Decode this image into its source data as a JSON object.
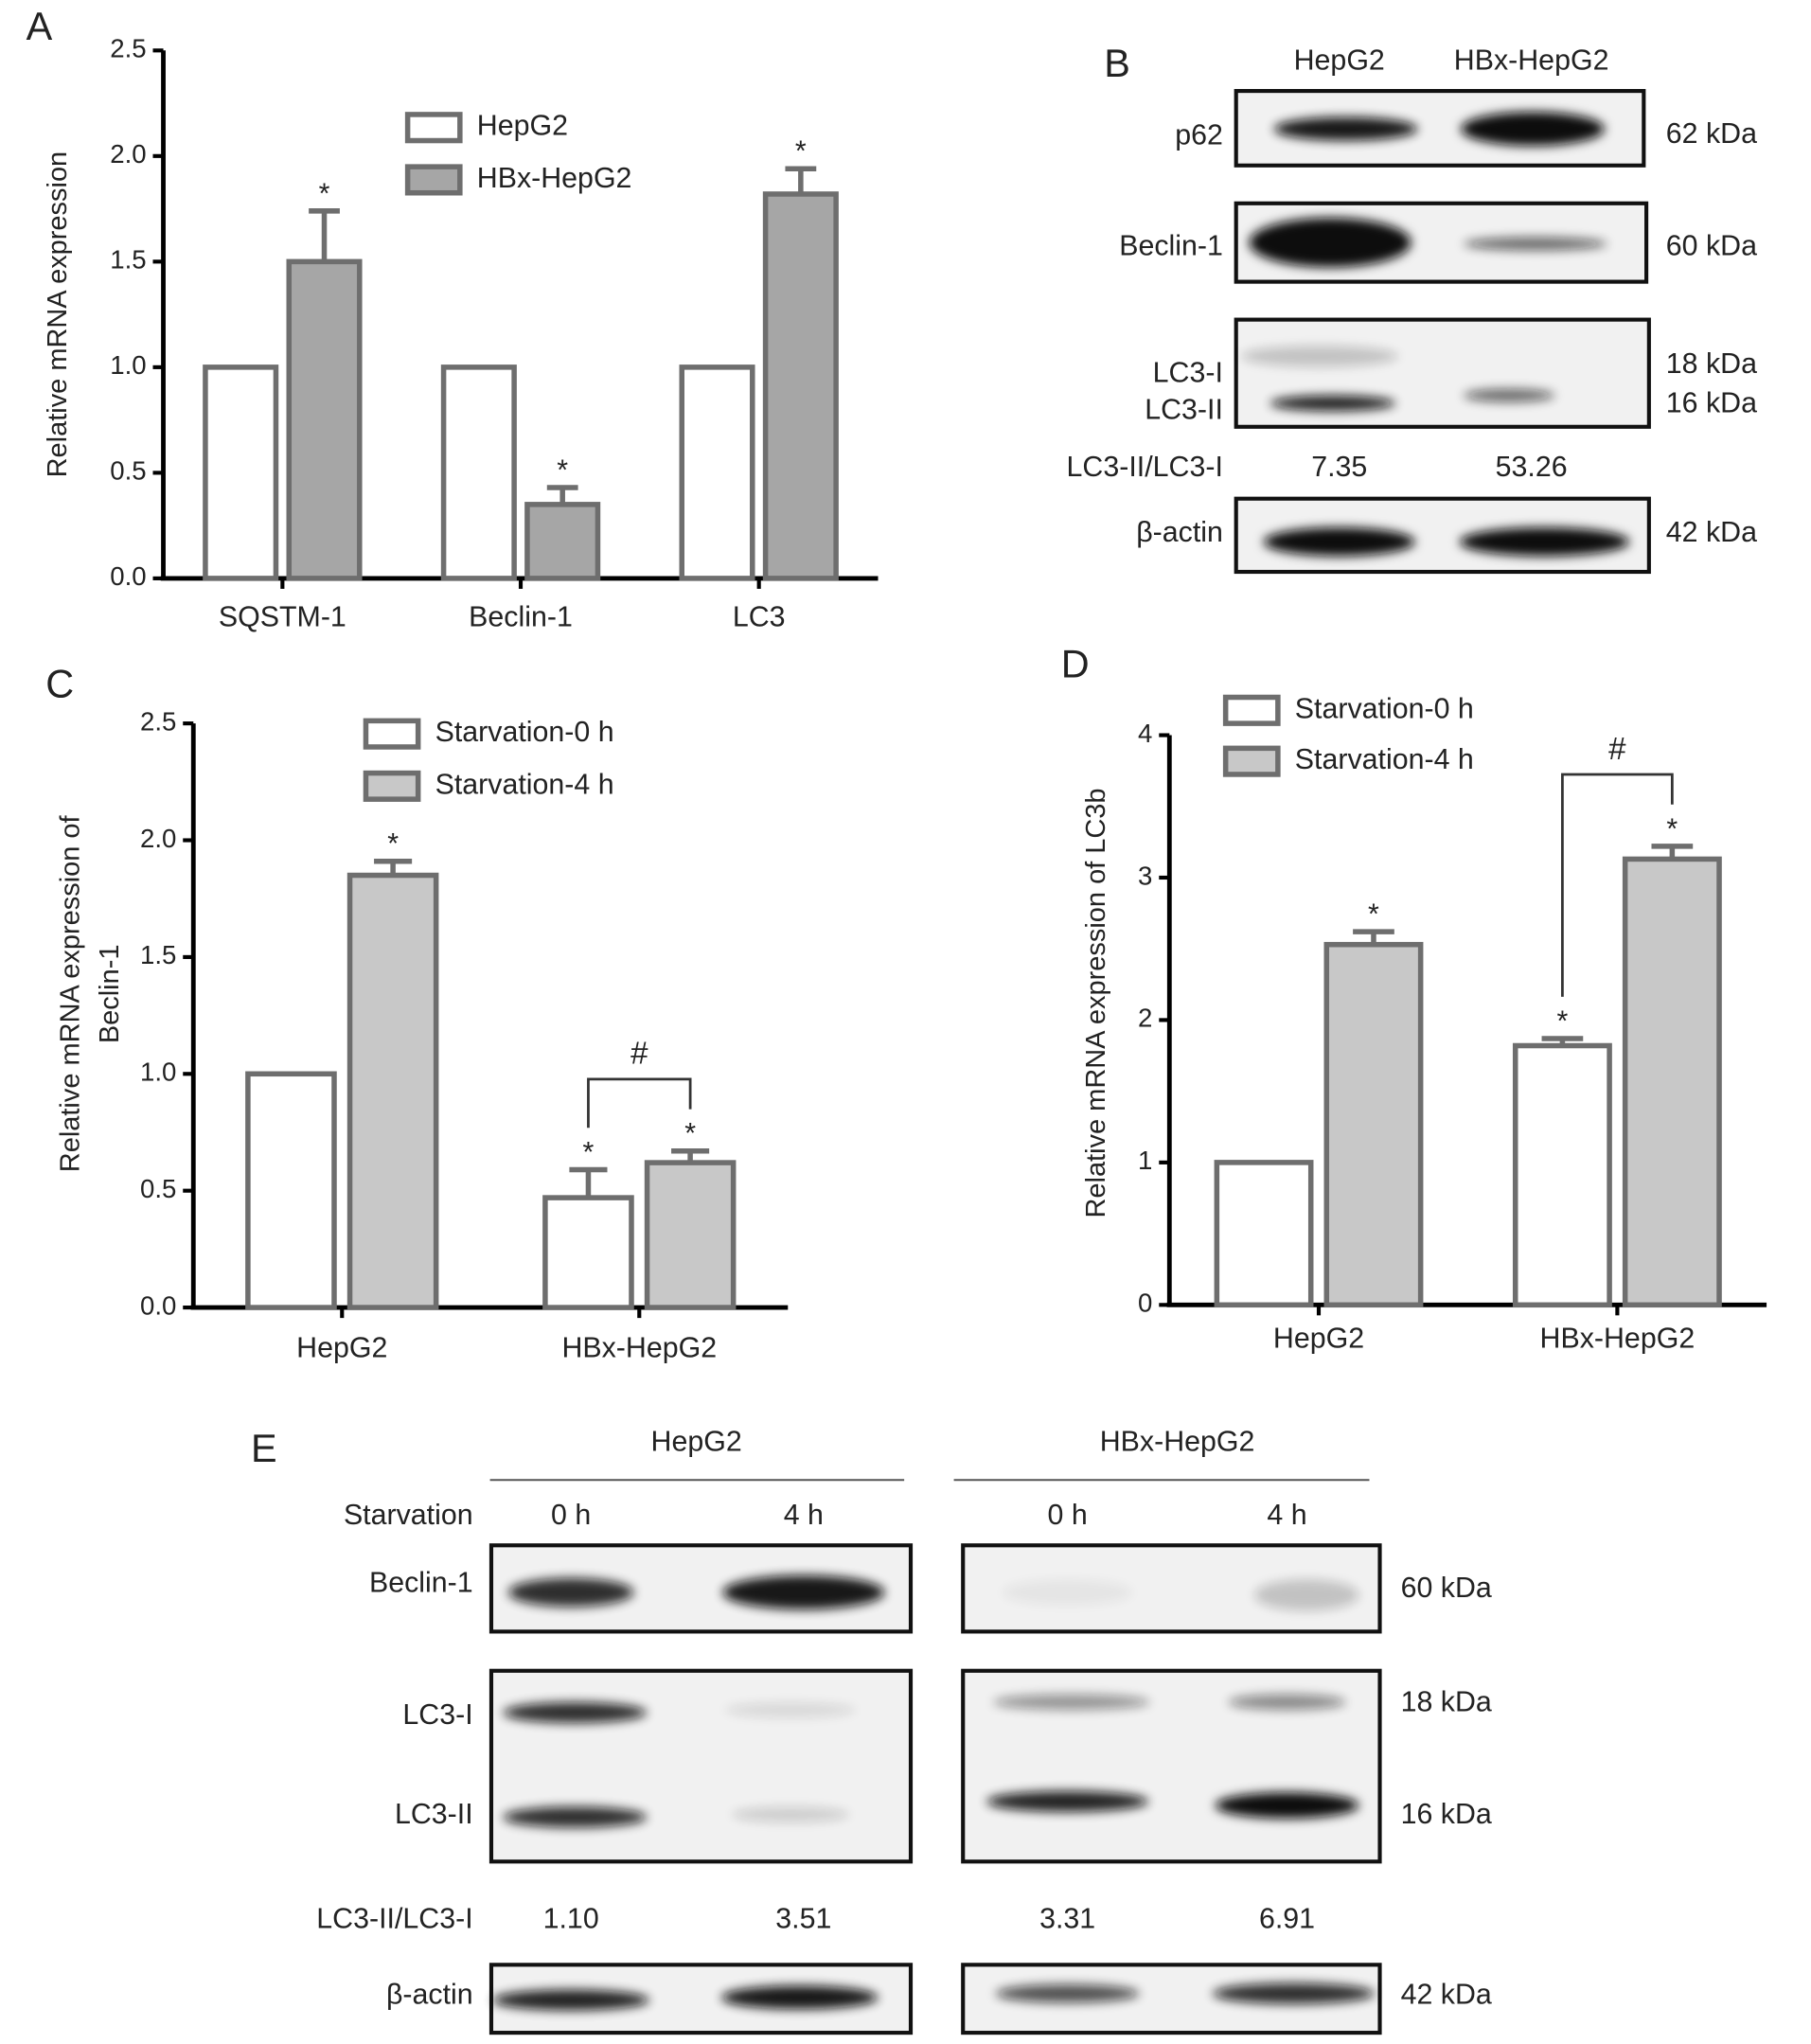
{
  "chart_data": [
    {
      "type": "bar",
      "panel": "A",
      "ylabel": "Relative mRNA expression",
      "categories": [
        "SQSTM-1",
        "Beclin-1",
        "LC3"
      ],
      "series": [
        {
          "name": "HepG2",
          "color": "#ffffff",
          "values": [
            1,
            1,
            1
          ],
          "errors": [
            null,
            null,
            null
          ],
          "marks": [
            null,
            null,
            null
          ]
        },
        {
          "name": "HBx-HepG2",
          "color": "#a6a6a6",
          "values": [
            1.5,
            0.35,
            1.82
          ],
          "errors": [
            0.24,
            0.08,
            0.12
          ],
          "marks": [
            "*",
            "*",
            "*"
          ]
        }
      ],
      "edgecolor": "#6e6e6e",
      "ylim": [
        0,
        2.5
      ],
      "yticks": [
        {
          "value": 0,
          "label": "0.0"
        },
        0.5,
        {
          "value": 1,
          "label": "1.0"
        },
        1.5,
        {
          "value": 2,
          "label": "2.0"
        },
        2.5
      ]
    },
    {
      "type": "bar",
      "panel": "C",
      "ylabel": [
        "Relative mRNA expression of",
        "Beclin-1"
      ],
      "categories": [
        "HepG2",
        "HBx-HepG2"
      ],
      "series": [
        {
          "name": "Starvation-0 h",
          "color": "#ffffff",
          "values": [
            1,
            0.47
          ],
          "errors": [
            null,
            0.12
          ],
          "marks": [
            null,
            "*"
          ]
        },
        {
          "name": "Starvation-4 h",
          "color": "#c8c8c8",
          "values": [
            1.85,
            0.62
          ],
          "errors": [
            0.06,
            0.05
          ],
          "marks": [
            "*",
            "*"
          ]
        }
      ],
      "edgecolor": "#6e6e6e",
      "ylim": [
        0,
        2.5
      ],
      "yticks": [
        {
          "value": 0,
          "label": "0.0"
        },
        0.5,
        {
          "value": 1,
          "label": "1.0"
        },
        1.5,
        {
          "value": 2,
          "label": "2.0"
        },
        2.5
      ],
      "bracket": {
        "label": "#",
        "category": "HBx-HepG2"
      }
    },
    {
      "type": "bar",
      "panel": "D",
      "ylabel": "Relative mRNA expression of LC3b",
      "categories": [
        "HepG2",
        "HBx-HepG2"
      ],
      "series": [
        {
          "name": "Starvation-0 h",
          "color": "#ffffff",
          "values": [
            1,
            1.82
          ],
          "errors": [
            null,
            0.05
          ],
          "marks": [
            null,
            "*"
          ]
        },
        {
          "name": "Starvation-4 h",
          "color": "#c8c8c8",
          "values": [
            2.53,
            3.13
          ],
          "errors": [
            0.09,
            0.09
          ],
          "marks": [
            "*",
            "*"
          ]
        }
      ],
      "edgecolor": "#6e6e6e",
      "ylim": [
        0,
        4
      ],
      "yticks": [
        0,
        1,
        2,
        3,
        4
      ],
      "bracket": {
        "label": "#",
        "category": "HBx-HepG2"
      }
    }
  ],
  "panel_B": {
    "label": "B",
    "columns": [
      "HepG2",
      "HBx-HepG2"
    ],
    "rows": [
      {
        "names": [
          "p62"
        ],
        "sizes": [
          "62 kDa"
        ]
      },
      {
        "names": [
          "Beclin-1"
        ],
        "sizes": [
          "60 kDa"
        ]
      },
      {
        "names": [
          "LC3-I",
          "LC3-II"
        ],
        "sizes": [
          "18 kDa",
          "16 kDa"
        ]
      },
      {
        "names": [
          "β-actin"
        ],
        "sizes": [
          "42 kDa"
        ]
      }
    ],
    "ratio_label": "LC3-II/LC3-I",
    "ratios": [
      "7.35",
      "53.26"
    ]
  },
  "panel_E": {
    "label": "E",
    "groups": [
      "HepG2",
      "HBx-HepG2"
    ],
    "condition_label": "Starvation",
    "conditions": [
      "0 h",
      "4 h",
      "0 h",
      "4 h"
    ],
    "rows": [
      {
        "names": [
          "Beclin-1"
        ],
        "sizes": [
          "60 kDa"
        ]
      },
      {
        "names": [
          "LC3-I",
          "LC3-II"
        ],
        "sizes": [
          "18 kDa",
          "16 kDa"
        ]
      },
      {
        "names": [
          "β-actin"
        ],
        "sizes": [
          "42 kDa"
        ]
      }
    ],
    "ratio_label": "LC3-II/LC3-I",
    "ratios": [
      "1.10",
      "3.51",
      "3.31",
      "6.91"
    ]
  }
}
